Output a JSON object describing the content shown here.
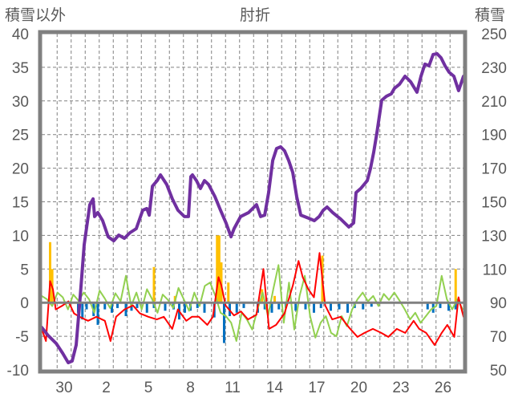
{
  "chart_data": {
    "type": "line",
    "title": "肘折",
    "ylabel_left": "積雪以外",
    "ylabel_right": "積雪",
    "ylim_left": [
      -10,
      40
    ],
    "ylim_right": [
      50,
      250
    ],
    "yticks_left": [
      "40",
      "35",
      "30",
      "25",
      "20",
      "15",
      "10",
      "5",
      "0",
      "-5",
      "-10"
    ],
    "yticks_right": [
      "250",
      "230",
      "210",
      "190",
      "170",
      "150",
      "130",
      "110",
      "90",
      "70",
      "50"
    ],
    "xlim_days": [
      -1.6,
      28.5
    ],
    "xticks": [
      {
        "t": 0,
        "label": "30"
      },
      {
        "t": 3,
        "label": "2"
      },
      {
        "t": 6,
        "label": "5"
      },
      {
        "t": 9,
        "label": "8"
      },
      {
        "t": 12,
        "label": "11"
      },
      {
        "t": 15,
        "label": "14"
      },
      {
        "t": 18,
        "label": "17"
      },
      {
        "t": 21,
        "label": "20"
      },
      {
        "t": 24,
        "label": "23"
      },
      {
        "t": 27,
        "label": "26"
      }
    ],
    "grid": true,
    "colors": {
      "snow": "#7030a0",
      "red": "#ff0000",
      "green": "#92d050",
      "blue": "#0070c0",
      "orange": "#ffc000",
      "axis": "#808080",
      "grid": "#808080",
      "text": "#595959"
    },
    "series": [
      {
        "name": "積雪",
        "axis": "right",
        "color": "#7030a0",
        "points": [
          [
            -1.6,
            75.3
          ],
          [
            -1.14,
            70.5
          ],
          [
            -0.57,
            65.8
          ],
          [
            -0.11,
            60
          ],
          [
            0.29,
            54.3
          ],
          [
            0.57,
            55.3
          ],
          [
            0.86,
            64.8
          ],
          [
            1.14,
            93.4
          ],
          [
            1.43,
            124.5
          ],
          [
            1.83,
            148.3
          ],
          [
            2.06,
            151.7
          ],
          [
            2.17,
            141.2
          ],
          [
            2.4,
            143.6
          ],
          [
            2.74,
            138.8
          ],
          [
            3.14,
            129.2
          ],
          [
            3.54,
            126.8
          ],
          [
            3.89,
            130.2
          ],
          [
            4.29,
            128.3
          ],
          [
            4.69,
            131.6
          ],
          [
            5.14,
            134
          ],
          [
            5.6,
            145
          ],
          [
            5.89,
            146
          ],
          [
            6.06,
            142.1
          ],
          [
            6.29,
            159.3
          ],
          [
            6.63,
            162.6
          ],
          [
            6.86,
            166
          ],
          [
            7.31,
            160.3
          ],
          [
            7.71,
            151.7
          ],
          [
            8.11,
            145
          ],
          [
            8.57,
            141.2
          ],
          [
            8.86,
            141.2
          ],
          [
            9.03,
            165
          ],
          [
            9.14,
            166
          ],
          [
            9.43,
            162.6
          ],
          [
            9.71,
            157.9
          ],
          [
            10,
            162.6
          ],
          [
            10.29,
            160.3
          ],
          [
            10.74,
            153.1
          ],
          [
            11.14,
            145
          ],
          [
            11.54,
            137.4
          ],
          [
            11.89,
            129.2
          ],
          [
            12.11,
            134
          ],
          [
            12.57,
            141.2
          ],
          [
            13.14,
            143.6
          ],
          [
            13.71,
            148.3
          ],
          [
            14,
            141.2
          ],
          [
            14.29,
            142.1
          ],
          [
            14.57,
            155.5
          ],
          [
            14.86,
            174.6
          ],
          [
            15.14,
            181.7
          ],
          [
            15.43,
            182.7
          ],
          [
            15.71,
            180.3
          ],
          [
            16,
            174.6
          ],
          [
            16.29,
            167.4
          ],
          [
            16.57,
            153.1
          ],
          [
            16.86,
            142.1
          ],
          [
            17.43,
            140.2
          ],
          [
            17.83,
            138.8
          ],
          [
            18.17,
            141.2
          ],
          [
            18.46,
            145
          ],
          [
            18.74,
            146.9
          ],
          [
            19.14,
            143.6
          ],
          [
            19.71,
            139.7
          ],
          [
            20.29,
            135
          ],
          [
            20.63,
            137.4
          ],
          [
            20.8,
            155.5
          ],
          [
            21.14,
            157.9
          ],
          [
            21.6,
            162.6
          ],
          [
            21.83,
            169.8
          ],
          [
            22.06,
            179.4
          ],
          [
            22.29,
            191.3
          ],
          [
            22.63,
            210.4
          ],
          [
            22.97,
            212.8
          ],
          [
            23.31,
            214.2
          ],
          [
            23.54,
            217.5
          ],
          [
            23.89,
            219.9
          ],
          [
            24.29,
            224.7
          ],
          [
            24.69,
            221.4
          ],
          [
            25.14,
            215.2
          ],
          [
            25.43,
            224.7
          ],
          [
            25.71,
            231.9
          ],
          [
            26,
            230.9
          ],
          [
            26.29,
            237.6
          ],
          [
            26.57,
            238.1
          ],
          [
            26.86,
            235.7
          ],
          [
            27.14,
            230.9
          ],
          [
            27.43,
            227.1
          ],
          [
            27.77,
            224.7
          ],
          [
            28.11,
            216.1
          ],
          [
            28.46,
            224.7
          ]
        ]
      },
      {
        "name": "red",
        "axis": "left",
        "color": "#ff0000",
        "points": [
          [
            -1.6,
            -3.9
          ],
          [
            -1.3,
            -5.7
          ],
          [
            -1.0,
            3.2
          ],
          [
            -0.8,
            2.0
          ],
          [
            -0.6,
            -1.0
          ],
          [
            -0.1,
            -0.4
          ],
          [
            0.3,
            0.2
          ],
          [
            0.7,
            -1.6
          ],
          [
            1.1,
            -2.1
          ],
          [
            1.7,
            -2.7
          ],
          [
            2.3,
            -2.1
          ],
          [
            2.9,
            -2.7
          ],
          [
            3.3,
            -5.7
          ],
          [
            3.7,
            -2.1
          ],
          [
            4.3,
            -1.0
          ],
          [
            4.9,
            -0.4
          ],
          [
            5.4,
            -1.6
          ],
          [
            6.0,
            -2.1
          ],
          [
            6.6,
            -2.5
          ],
          [
            7.1,
            -2.1
          ],
          [
            7.7,
            -3.9
          ],
          [
            8.1,
            -1.0
          ],
          [
            8.7,
            -2.7
          ],
          [
            9.1,
            -2.1
          ],
          [
            9.6,
            -2.1
          ],
          [
            10.2,
            -3.3
          ],
          [
            10.6,
            -2.1
          ],
          [
            11.0,
            3.8
          ],
          [
            11.2,
            2.6
          ],
          [
            11.5,
            -0.4
          ],
          [
            12.1,
            -1.9
          ],
          [
            12.6,
            -1.3
          ],
          [
            13.1,
            -2.5
          ],
          [
            13.7,
            -1.8
          ],
          [
            14.2,
            5.0
          ],
          [
            14.6,
            -3.9
          ],
          [
            15.1,
            -3.3
          ],
          [
            15.7,
            -1.6
          ],
          [
            16.3,
            2.6
          ],
          [
            16.7,
            6.2
          ],
          [
            17.0,
            3.8
          ],
          [
            17.4,
            2.0
          ],
          [
            17.8,
            0.8
          ],
          [
            18.2,
            7.4
          ],
          [
            18.6,
            -0.4
          ],
          [
            19.1,
            -2.5
          ],
          [
            19.7,
            -2.1
          ],
          [
            20.3,
            -3.7
          ],
          [
            20.9,
            -5.1
          ],
          [
            21.4,
            -4.5
          ],
          [
            22.0,
            -3.9
          ],
          [
            22.6,
            -4.5
          ],
          [
            23.1,
            -5.1
          ],
          [
            23.7,
            -3.9
          ],
          [
            24.3,
            -4.5
          ],
          [
            24.9,
            -2.7
          ],
          [
            25.3,
            -3.9
          ],
          [
            25.8,
            -4.5
          ],
          [
            26.4,
            -6.3
          ],
          [
            26.9,
            -4.5
          ],
          [
            27.3,
            -3.3
          ],
          [
            27.8,
            -5.1
          ],
          [
            28.1,
            0.8
          ],
          [
            28.5,
            -2.1
          ]
        ]
      },
      {
        "name": "green",
        "axis": "left",
        "color": "#92d050",
        "t0": -1.6,
        "dt": 0.375,
        "values": [
          1,
          0.5,
          -0.5,
          1.5,
          0.8,
          -1,
          1.2,
          0.3,
          1.5,
          0.5,
          -1.5,
          1.8,
          0.6,
          -0.8,
          1.4,
          0.2,
          4,
          -0.5,
          1.5,
          -1,
          2,
          0.5,
          -1.5,
          1.2,
          0.4,
          -0.8,
          2.2,
          0.5,
          -1.2,
          1.5,
          -0.5,
          2.5,
          3,
          1,
          -1.5,
          -2,
          -3,
          -5.7,
          -1.5,
          -2.5,
          -4,
          -1,
          1.5,
          -2,
          2,
          5.6,
          -3,
          3,
          -4,
          1,
          4,
          -2,
          -5.2,
          -3,
          -2,
          -4.5,
          -5,
          -2,
          -3.5,
          -1,
          0.5,
          1.5,
          0.2,
          1,
          -0.5,
          1.3,
          0.4,
          1.5,
          0.3,
          -1,
          -2.5,
          -1.5,
          -3,
          -2,
          -1,
          -0.5,
          4,
          0.5,
          -1,
          0.5,
          -1
        ]
      },
      {
        "name": "blue",
        "axis": "left",
        "type": "bar",
        "color": "#0070c0",
        "points": [
          [
            1.0,
            -1.5
          ],
          [
            1.3,
            -2.5
          ],
          [
            1.6,
            -1
          ],
          [
            2.1,
            -2
          ],
          [
            2.4,
            -3.3
          ],
          [
            2.9,
            -1
          ],
          [
            3.4,
            -1.5
          ],
          [
            3.8,
            -0.8
          ],
          [
            4.4,
            -2
          ],
          [
            4.8,
            -1.2
          ],
          [
            5.2,
            -0.8
          ],
          [
            5.9,
            -1.5
          ],
          [
            6.4,
            -0.8
          ],
          [
            7.2,
            -1.2
          ],
          [
            7.8,
            -1
          ],
          [
            8.2,
            -2.5
          ],
          [
            8.6,
            -1.5
          ],
          [
            9.0,
            -1.2
          ],
          [
            9.5,
            -0.8
          ],
          [
            10.0,
            -1.5
          ],
          [
            10.7,
            -2.2
          ],
          [
            11.4,
            -6
          ],
          [
            11.8,
            -2
          ],
          [
            12.3,
            -1.5
          ],
          [
            12.8,
            -0.8
          ],
          [
            13.8,
            -1.5
          ],
          [
            14.3,
            -1
          ],
          [
            14.8,
            -1.5
          ],
          [
            15.3,
            -1
          ],
          [
            15.8,
            -0.8
          ],
          [
            16.5,
            -1.2
          ],
          [
            17.2,
            -1
          ],
          [
            17.8,
            -1.5
          ],
          [
            18.3,
            -0.8
          ],
          [
            19.0,
            -1.2
          ],
          [
            19.6,
            -1
          ],
          [
            20.2,
            -1.5
          ],
          [
            20.7,
            -0.8
          ],
          [
            21.3,
            -1
          ],
          [
            21.9,
            -0.6
          ],
          [
            25.9,
            -1
          ],
          [
            26.3,
            -1.5
          ],
          [
            26.8,
            -0.8
          ],
          [
            27.4,
            -1.2
          ],
          [
            27.9,
            -1
          ]
        ]
      },
      {
        "name": "orange",
        "axis": "left",
        "type": "bar",
        "color": "#ffc000",
        "points": [
          [
            -1.0,
            9
          ],
          [
            -0.85,
            5
          ],
          [
            6.4,
            5.3
          ],
          [
            7.9,
            1
          ],
          [
            10.9,
            10
          ],
          [
            11.05,
            10
          ],
          [
            11.2,
            6
          ],
          [
            11.7,
            3
          ],
          [
            14.1,
            2
          ],
          [
            15.0,
            1
          ],
          [
            18.4,
            7
          ],
          [
            27.9,
            5
          ]
        ]
      }
    ]
  }
}
